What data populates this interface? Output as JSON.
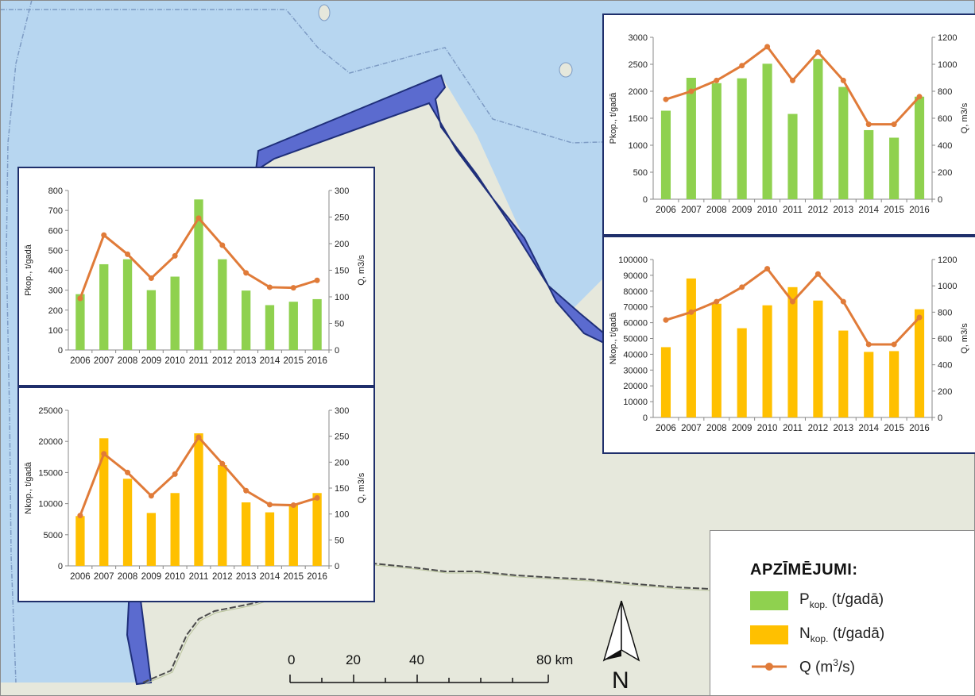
{
  "map": {
    "sea_color": "#b7d6f0",
    "land_color": "#e6e8dc",
    "coastal_zone_color": "#5b6bcf",
    "border_color": "#1f2f7a"
  },
  "years": [
    "2006",
    "2007",
    "2008",
    "2009",
    "2010",
    "2011",
    "2012",
    "2013",
    "2014",
    "2015",
    "2016"
  ],
  "chart_data": [
    {
      "id": "p-large",
      "type": "bar",
      "categories": [
        "2006",
        "2007",
        "2008",
        "2009",
        "2010",
        "2011",
        "2012",
        "2013",
        "2014",
        "2015",
        "2016"
      ],
      "series": [
        {
          "type": "bar",
          "color": "#8fd14f",
          "values": [
            1640,
            2250,
            2150,
            2240,
            2510,
            1580,
            2600,
            2080,
            1280,
            1140,
            1900
          ]
        },
        {
          "type": "line",
          "axis": "right",
          "color": "#e07b39",
          "values": [
            740,
            800,
            880,
            990,
            1130,
            880,
            1090,
            880,
            555,
            555,
            760
          ]
        }
      ],
      "ylabel": "Pkop., t/gadā",
      "y2label": "Q, m3/s",
      "ylim": [
        0,
        3000
      ],
      "yticks": [
        0,
        500,
        1000,
        1500,
        2000,
        2500,
        3000
      ],
      "y2lim": [
        0,
        1200
      ],
      "y2ticks": [
        0,
        200,
        400,
        600,
        800,
        1000,
        1200
      ]
    },
    {
      "id": "n-large",
      "type": "bar",
      "categories": [
        "2006",
        "2007",
        "2008",
        "2009",
        "2010",
        "2011",
        "2012",
        "2013",
        "2014",
        "2015",
        "2016"
      ],
      "series": [
        {
          "type": "bar",
          "color": "#ffc000",
          "values": [
            44500,
            88000,
            72000,
            56500,
            71000,
            82500,
            74000,
            55000,
            41500,
            42000,
            68500
          ]
        },
        {
          "type": "line",
          "axis": "right",
          "color": "#e07b39",
          "values": [
            740,
            800,
            880,
            990,
            1130,
            880,
            1090,
            880,
            555,
            555,
            760
          ]
        }
      ],
      "ylabel": "Nkop., t/gadā",
      "y2label": "Q, m3/s",
      "ylim": [
        0,
        100000
      ],
      "yticks": [
        0,
        10000,
        20000,
        30000,
        40000,
        50000,
        60000,
        70000,
        80000,
        90000,
        100000
      ],
      "y2lim": [
        0,
        1200
      ],
      "y2ticks": [
        0,
        200,
        400,
        600,
        800,
        1000,
        1200
      ]
    },
    {
      "id": "p-small",
      "type": "bar",
      "categories": [
        "2006",
        "2007",
        "2008",
        "2009",
        "2010",
        "2011",
        "2012",
        "2013",
        "2014",
        "2015",
        "2016"
      ],
      "series": [
        {
          "type": "bar",
          "color": "#8fd14f",
          "values": [
            280,
            430,
            455,
            300,
            368,
            755,
            455,
            298,
            225,
            242,
            255
          ]
        },
        {
          "type": "line",
          "axis": "right",
          "color": "#e07b39",
          "values": [
            97,
            216,
            180,
            135,
            177,
            248,
            197,
            145,
            118,
            117,
            131
          ]
        }
      ],
      "ylabel": "Pkop., t/gadā",
      "y2label": "Q, m3/s",
      "ylim": [
        0,
        800
      ],
      "yticks": [
        0,
        100,
        200,
        300,
        400,
        500,
        600,
        700,
        800
      ],
      "y2lim": [
        0,
        300
      ],
      "y2ticks": [
        0,
        50,
        100,
        150,
        200,
        250,
        300
      ]
    },
    {
      "id": "n-small",
      "type": "bar",
      "categories": [
        "2006",
        "2007",
        "2008",
        "2009",
        "2010",
        "2011",
        "2012",
        "2013",
        "2014",
        "2015",
        "2016"
      ],
      "series": [
        {
          "type": "bar",
          "color": "#ffc000",
          "values": [
            8000,
            20500,
            14000,
            8500,
            11700,
            21300,
            16200,
            10200,
            8600,
            9800,
            11700
          ]
        },
        {
          "type": "line",
          "axis": "right",
          "color": "#e07b39",
          "values": [
            97,
            216,
            180,
            135,
            177,
            248,
            197,
            145,
            118,
            117,
            131
          ]
        }
      ],
      "ylabel": "Nkop., t/gadā",
      "y2label": "Q, m3/s",
      "ylim": [
        0,
        25000
      ],
      "yticks": [
        0,
        5000,
        10000,
        15000,
        20000,
        25000
      ],
      "y2lim": [
        0,
        300
      ],
      "y2ticks": [
        0,
        50,
        100,
        150,
        200,
        250,
        300
      ]
    }
  ],
  "legend": {
    "title": "APZĪMĒJUMI:",
    "p_main": "P",
    "p_sub": "kop.",
    "p_unit": " (t/gadā)",
    "p_color": "#8fd14f",
    "n_main": "N",
    "n_sub": "kop.",
    "n_unit": " (t/gadā)",
    "n_color": "#ffc000",
    "q_text": "Q (m",
    "q_sup": "3",
    "q_end": "/s)",
    "q_color": "#e07b39"
  },
  "scale_bar": {
    "labels": [
      "0",
      "20",
      "40",
      "80 km"
    ]
  },
  "north_arrow": {
    "label": "N"
  }
}
